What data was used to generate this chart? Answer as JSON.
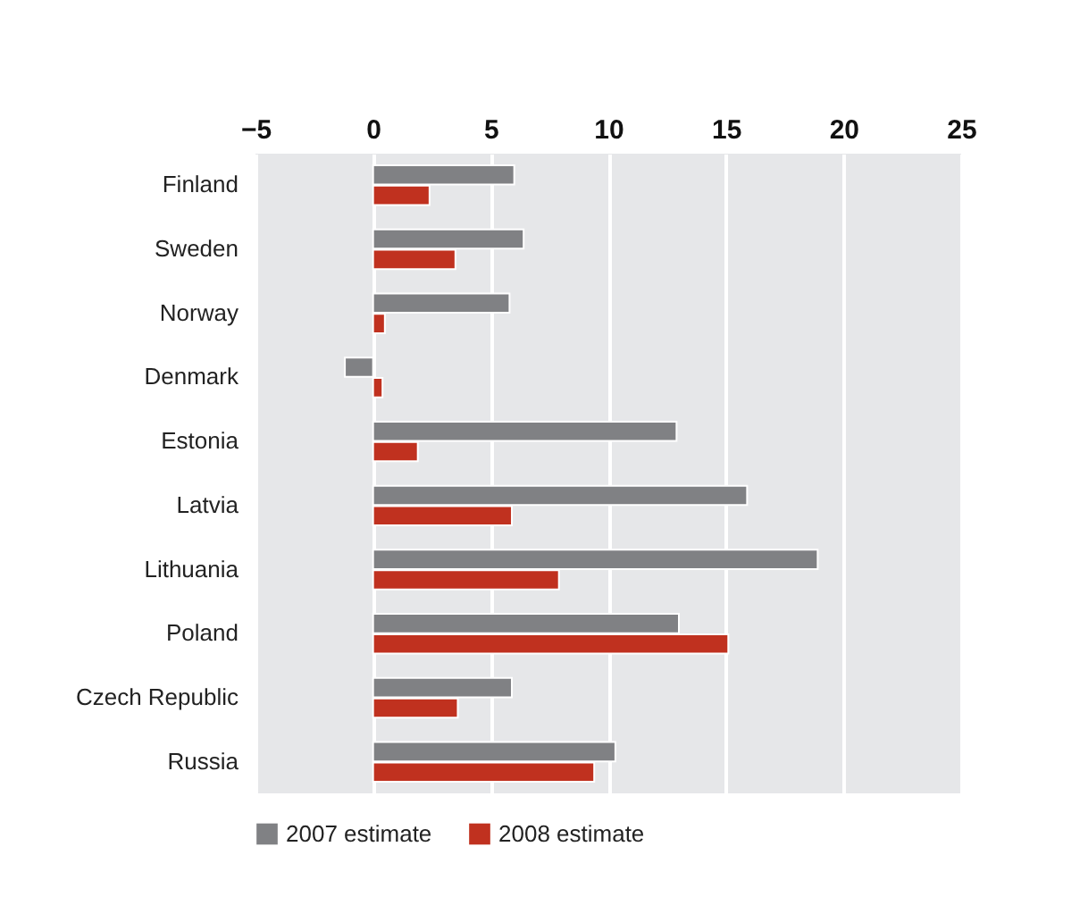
{
  "chart_data": {
    "type": "bar",
    "orientation": "horizontal",
    "categories": [
      "Finland",
      "Sweden",
      "Norway",
      "Denmark",
      "Estonia",
      "Latvia",
      "Lithuania",
      "Poland",
      "Czech Republic",
      "Russia"
    ],
    "series": [
      {
        "name": "2007 estimate",
        "color": "#808184",
        "values": [
          6.0,
          6.4,
          5.8,
          -1.2,
          12.9,
          15.9,
          18.9,
          13.0,
          5.9,
          10.3
        ]
      },
      {
        "name": "2008 estimate",
        "color": "#c0311f",
        "values": [
          2.4,
          3.5,
          0.5,
          0.4,
          1.9,
          5.9,
          7.9,
          15.1,
          3.6,
          9.4
        ]
      }
    ],
    "xlim": [
      -5,
      25
    ],
    "xticks": [
      -5,
      0,
      5,
      10,
      15,
      20,
      25
    ],
    "grid": "x",
    "legend": "bottom left"
  }
}
